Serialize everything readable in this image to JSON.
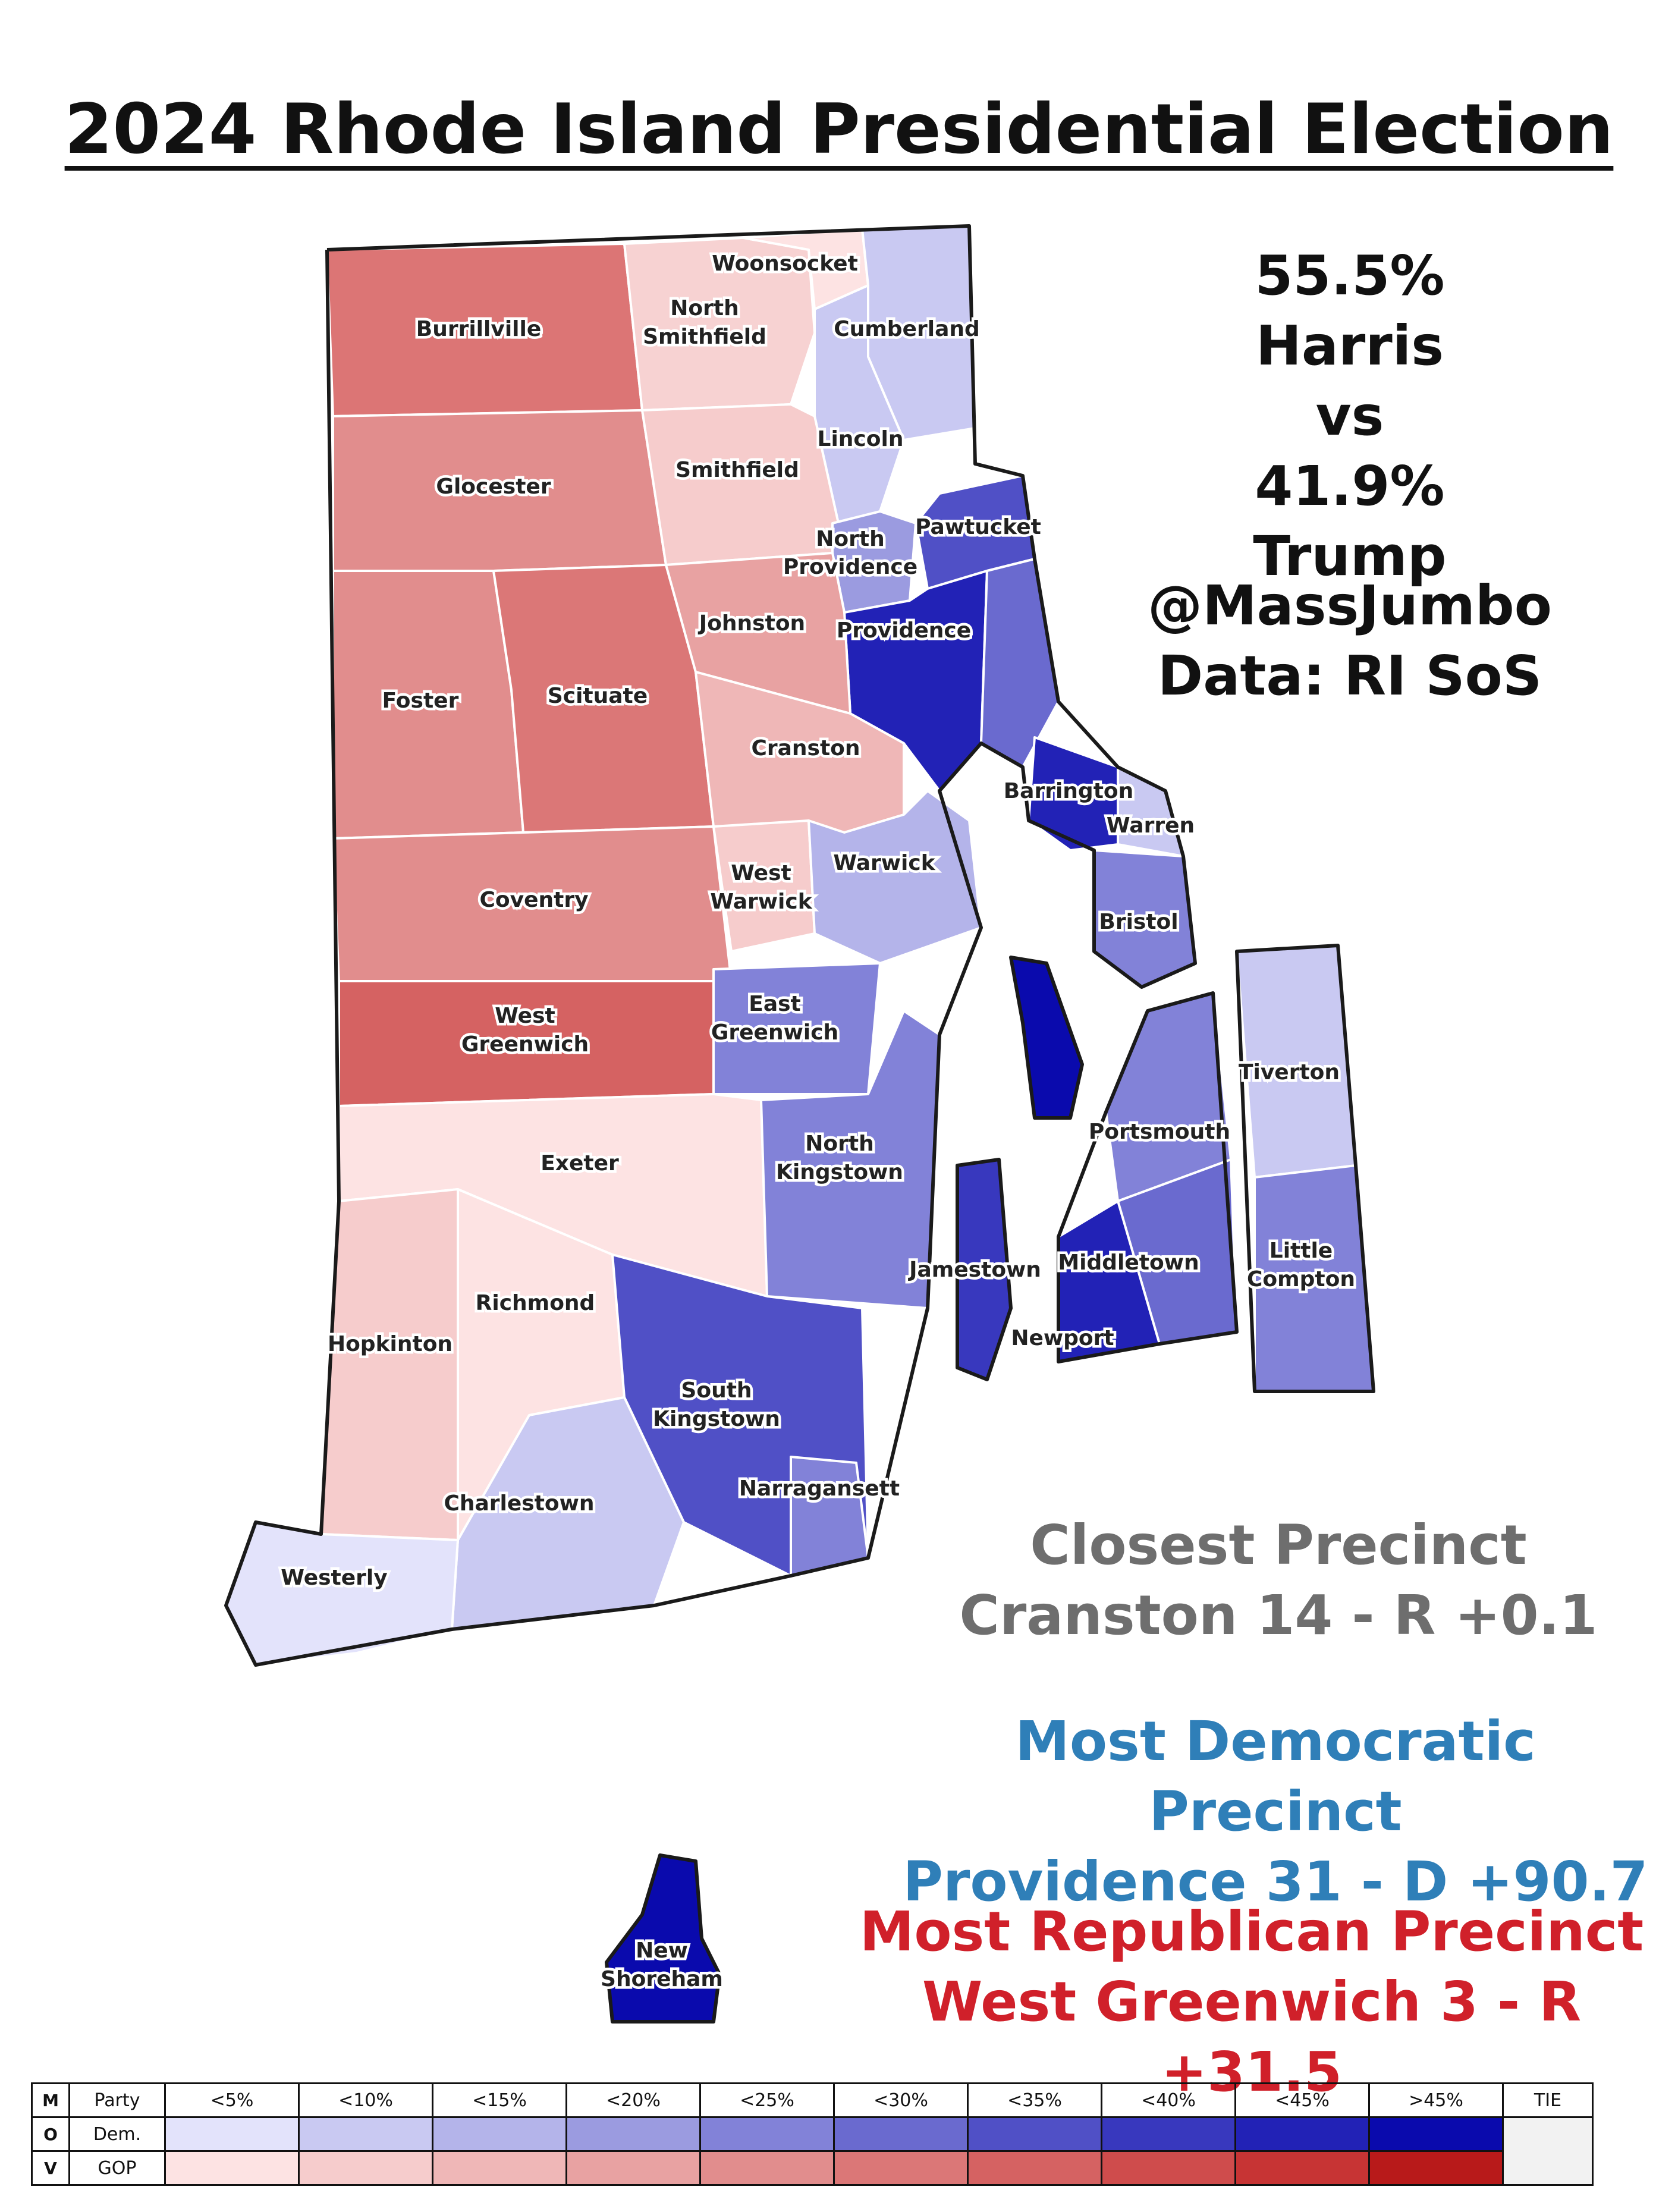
{
  "title": "2024 Rhode Island Presidential Election",
  "summary": {
    "harris": "55.5% Harris",
    "vs": "vs",
    "trump": "41.9% Trump"
  },
  "credit": {
    "handle": "@MassJumbo",
    "source": "Data: RI SoS"
  },
  "closest": {
    "heading": "Closest Precinct",
    "value": "Cranston 14 - R +0.1"
  },
  "most_dem": {
    "heading": "Most Democratic Precinct",
    "value": "Providence 31 - D +90.7"
  },
  "most_gop": {
    "heading": "Most Republican Precinct",
    "value": "West Greenwich 3 - R +31.5"
  },
  "towns": [
    "Woonsocket",
    "North",
    "Smithfield",
    "Burrillville",
    "Cumberland",
    "Lincoln",
    "Glocester",
    "Smithfield",
    "North",
    "Providence",
    "Pawtucket",
    "Johnston",
    "Providence",
    "Foster",
    "Scituate",
    "Cranston",
    "Barrington",
    "Warren",
    "Coventry",
    "West",
    "Warwick",
    "Warwick",
    "Bristol",
    "East",
    "Greenwich",
    "West",
    "Greenwich",
    "Tiverton",
    "Portsmouth",
    "North",
    "Kingstown",
    "Exeter",
    "Jamestown",
    "Middletown",
    "Little",
    "Compton",
    "Richmond",
    "Hopkinton",
    "Newport",
    "South",
    "Kingstown",
    "Narragansett",
    "Charlestown",
    "Westerly",
    "New",
    "Shoreham"
  ],
  "legend": {
    "mov_letters": [
      "M",
      "O",
      "V"
    ],
    "party_header": "Party",
    "dem_label": "Dem.",
    "gop_label": "GOP",
    "bins": [
      "<5%",
      "<10%",
      "<15%",
      "<20%",
      "<25%",
      "<30%",
      "<35%",
      "<40%",
      "<45%",
      ">45%"
    ],
    "tie_label": "TIE",
    "dem_colors": [
      "#e3e3fb",
      "#c9c9f2",
      "#b4b4ea",
      "#9b9be0",
      "#8282d8",
      "#6a6acf",
      "#5050c6",
      "#3838be",
      "#2222b6",
      "#0a0aad"
    ],
    "gop_colors": [
      "#fde3e3",
      "#f6cccc",
      "#efb7b7",
      "#e8a2a2",
      "#e18d8d",
      "#db7777",
      "#d56262",
      "#cf4c4c",
      "#c73434",
      "#b81a1a"
    ],
    "tie_color": "#f2f2f2"
  }
}
